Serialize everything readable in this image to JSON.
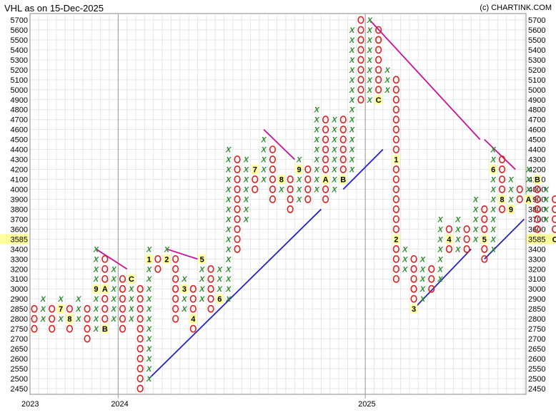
{
  "header": {
    "title": "VHL as on 15-Dec-2025",
    "credit": "(c) CHARTINK.COM"
  },
  "chart_data": {
    "type": "point-and-figure",
    "title": "VHL as on 15-Dec-2025",
    "y_ticks": [
      5700,
      5600,
      5500,
      5400,
      5300,
      5200,
      5100,
      5000,
      4900,
      4800,
      4700,
      4600,
      4500,
      4400,
      4300,
      4200,
      4100,
      4000,
      3900,
      3800,
      3700,
      3600,
      3400,
      3300,
      3200,
      3100,
      3000,
      2900,
      2850,
      2800,
      2750,
      2700,
      2650,
      2600,
      2550,
      2500,
      2450
    ],
    "y_levels": [
      5700,
      5600,
      5500,
      5400,
      5300,
      5200,
      5100,
      5000,
      4900,
      4800,
      4700,
      4600,
      4500,
      4400,
      4300,
      4200,
      4100,
      4000,
      3900,
      3800,
      3700,
      3600,
      3500,
      3400,
      3300,
      3200,
      3100,
      3000,
      2900,
      2850,
      2800,
      2750,
      2700,
      2650,
      2600,
      2550,
      2500,
      2450
    ],
    "current_price": "3585",
    "x_labels": [
      {
        "label": "2023",
        "column": 0
      },
      {
        "label": "2024",
        "column": 9.5
      },
      {
        "label": "2025",
        "column": 37.5
      }
    ],
    "colors": {
      "x": "#2e8b2e",
      "o": "#dd2222",
      "month_bg": "#ffff99",
      "support": "#2222cc",
      "resistance": "#cc1199",
      "grid": "#e6e6e6",
      "price_bg": "#ffff99"
    },
    "columns": [
      {
        "type": "O",
        "high": 2850,
        "low": 2750,
        "marks": {}
      },
      {
        "type": "X",
        "high": 2900,
        "low": 2800,
        "marks": {}
      },
      {
        "type": "O",
        "high": 2850,
        "low": 2750,
        "marks": {}
      },
      {
        "type": "X",
        "high": 2900,
        "low": 2800,
        "marks": {
          "2850": "7"
        }
      },
      {
        "type": "O",
        "high": 2850,
        "low": 2750,
        "marks": {
          "2800": "8"
        }
      },
      {
        "type": "X",
        "high": 2900,
        "low": 2800,
        "marks": {}
      },
      {
        "type": "O",
        "high": 2850,
        "low": 2700,
        "marks": {}
      },
      {
        "type": "X",
        "high": 3400,
        "low": 2750,
        "marks": {
          "3000": "9"
        }
      },
      {
        "type": "O",
        "high": 3300,
        "low": 2750,
        "marks": {
          "3000": "A",
          "2750": "B"
        }
      },
      {
        "type": "X",
        "high": 3200,
        "low": 2800,
        "marks": {}
      },
      {
        "type": "O",
        "high": 3100,
        "low": 2750,
        "marks": {}
      },
      {
        "type": "X",
        "high": 3100,
        "low": 2800,
        "marks": {
          "3100": "C"
        }
      },
      {
        "type": "O",
        "high": 3000,
        "low": 2450,
        "marks": {}
      },
      {
        "type": "X",
        "high": 3400,
        "low": 2500,
        "marks": {
          "3300": "1"
        }
      },
      {
        "type": "O",
        "high": 3300,
        "low": 3200,
        "marks": {}
      },
      {
        "type": "X",
        "high": 3400,
        "low": 3300,
        "marks": {
          "3300": "2"
        }
      },
      {
        "type": "O",
        "high": 3300,
        "low": 2800,
        "marks": {}
      },
      {
        "type": "X",
        "high": 3100,
        "low": 2850,
        "marks": {
          "3000": "3"
        }
      },
      {
        "type": "O",
        "high": 3000,
        "low": 2750,
        "marks": {
          "2800": "4"
        }
      },
      {
        "type": "X",
        "high": 3300,
        "low": 2900,
        "marks": {
          "3300": "5"
        }
      },
      {
        "type": "O",
        "high": 3200,
        "low": 2850,
        "marks": {}
      },
      {
        "type": "X",
        "high": 3200,
        "low": 2900,
        "marks": {
          "2900": "6"
        }
      },
      {
        "type": "X",
        "high": 4400,
        "low": 2900,
        "marks": {}
      },
      {
        "type": "O",
        "high": 4300,
        "low": 3400,
        "marks": {}
      },
      {
        "type": "X",
        "high": 4300,
        "low": 3700,
        "marks": {}
      },
      {
        "type": "O",
        "high": 4200,
        "low": 4000,
        "marks": {
          "4200": "7"
        }
      },
      {
        "type": "X",
        "high": 4500,
        "low": 4100,
        "marks": {}
      },
      {
        "type": "O",
        "high": 4400,
        "low": 3900,
        "marks": {}
      },
      {
        "type": "X",
        "high": 4100,
        "low": 4000,
        "marks": {
          "4100": "8"
        }
      },
      {
        "type": "O",
        "high": 4100,
        "low": 3800,
        "marks": {}
      },
      {
        "type": "X",
        "high": 4300,
        "low": 3900,
        "marks": {
          "4200": "9"
        }
      },
      {
        "type": "O",
        "high": 4200,
        "low": 3900,
        "marks": {}
      },
      {
        "type": "X",
        "high": 4800,
        "low": 4000,
        "marks": {}
      },
      {
        "type": "O",
        "high": 4700,
        "low": 3900,
        "marks": {
          "4100": "A"
        }
      },
      {
        "type": "X",
        "high": 4700,
        "low": 4000,
        "marks": {}
      },
      {
        "type": "O",
        "high": 4700,
        "low": 4100,
        "marks": {
          "4100": "B"
        }
      },
      {
        "type": "X",
        "high": 5600,
        "low": 4200,
        "marks": {}
      },
      {
        "type": "O",
        "high": 5700,
        "low": 4900,
        "marks": {}
      },
      {
        "type": "X",
        "high": 5700,
        "low": 4900,
        "marks": {}
      },
      {
        "type": "O",
        "high": 5600,
        "low": 4900,
        "marks": {
          "4900": "C"
        }
      },
      {
        "type": "X",
        "high": 5200,
        "low": 5000,
        "marks": {}
      },
      {
        "type": "O",
        "high": 5100,
        "low": 3100,
        "marks": {
          "4300": "1",
          "3500": "2"
        }
      },
      {
        "type": "X",
        "high": 3400,
        "low": 3200,
        "marks": {}
      },
      {
        "type": "O",
        "high": 3300,
        "low": 2850,
        "marks": {
          "2850": "3"
        }
      },
      {
        "type": "X",
        "high": 3300,
        "low": 2900,
        "marks": {}
      },
      {
        "type": "O",
        "high": 3200,
        "low": 3000,
        "marks": {}
      },
      {
        "type": "X",
        "high": 3700,
        "low": 3100,
        "marks": {}
      },
      {
        "type": "O",
        "high": 3600,
        "low": 3400,
        "marks": {
          "3500": "4"
        }
      },
      {
        "type": "X",
        "high": 3700,
        "low": 3400,
        "marks": {}
      },
      {
        "type": "O",
        "high": 3600,
        "low": 3400,
        "marks": {}
      },
      {
        "type": "X",
        "high": 3900,
        "low": 3500,
        "marks": {}
      },
      {
        "type": "O",
        "high": 3800,
        "low": 3300,
        "marks": {
          "3500": "5"
        }
      },
      {
        "type": "X",
        "high": 4400,
        "low": 3400,
        "marks": {
          "4200": "6"
        }
      },
      {
        "type": "O",
        "high": 4300,
        "low": 3800,
        "marks": {
          "3900": "8"
        }
      },
      {
        "type": "X",
        "high": 4100,
        "low": 3800,
        "marks": {
          "3800": "9"
        }
      },
      {
        "type": "O",
        "high": 4000,
        "low": 3900,
        "marks": {}
      },
      {
        "type": "X",
        "high": 4200,
        "low": 3900,
        "marks": {
          "3900": "A"
        }
      },
      {
        "type": "O",
        "high": 4100,
        "low": 3600,
        "marks": {
          "4100": "B"
        }
      },
      {
        "type": "X",
        "high": 4000,
        "low": 3700,
        "marks": {}
      },
      {
        "type": "O",
        "high": 3900,
        "low": 3500,
        "marks": {
          "3500": "C"
        }
      }
    ],
    "trend_lines": [
      {
        "kind": "resistance",
        "from": {
          "column": 7,
          "price": 3400
        },
        "to": {
          "column": 10.5,
          "price": 3200
        }
      },
      {
        "kind": "resistance",
        "from": {
          "column": 15,
          "price": 3400
        },
        "to": {
          "column": 18.5,
          "price": 3300
        }
      },
      {
        "kind": "resistance",
        "from": {
          "column": 26,
          "price": 4600
        },
        "to": {
          "column": 29.5,
          "price": 4300
        }
      },
      {
        "kind": "resistance",
        "from": {
          "column": 38,
          "price": 5700
        },
        "to": {
          "column": 50.5,
          "price": 4500
        }
      },
      {
        "kind": "resistance",
        "from": {
          "column": 51,
          "price": 4500
        },
        "to": {
          "column": 54.5,
          "price": 4200
        }
      },
      {
        "kind": "support",
        "from": {
          "column": 13,
          "price": 2500
        },
        "to": {
          "column": 32.5,
          "price": 3800
        }
      },
      {
        "kind": "support",
        "from": {
          "column": 35,
          "price": 4000
        },
        "to": {
          "column": 39.5,
          "price": 4400
        }
      },
      {
        "kind": "support",
        "from": {
          "column": 43,
          "price": 2850
        },
        "to": {
          "column": 49.5,
          "price": 3400
        }
      },
      {
        "kind": "support",
        "from": {
          "column": 51,
          "price": 3300
        },
        "to": {
          "column": 55.5,
          "price": 3700
        }
      }
    ]
  }
}
